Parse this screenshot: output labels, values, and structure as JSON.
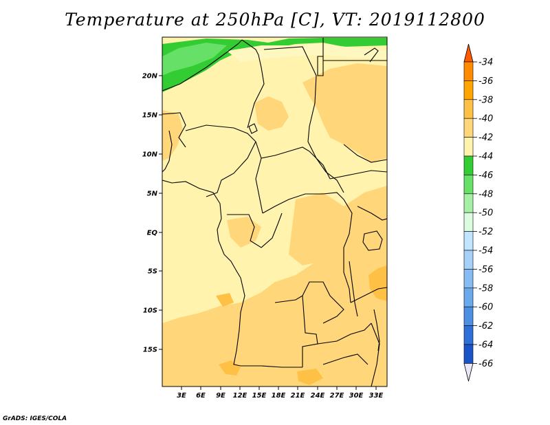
{
  "title": "Temperature at 250hPa [C], VT: 2019112800",
  "credit": "GrADS: IGES/COLA",
  "map": {
    "lat_labels": [
      "20N",
      "15N",
      "10N",
      "5N",
      "EQ",
      "5S",
      "10S",
      "15S"
    ],
    "lon_labels": [
      "3E",
      "6E",
      "9E",
      "12E",
      "15E",
      "18E",
      "21E",
      "24E",
      "27E",
      "30E",
      "33E"
    ]
  },
  "colorbar": {
    "labels": [
      "-34",
      "-36",
      "-38",
      "-40",
      "-42",
      "-44",
      "-46",
      "-48",
      "-50",
      "-52",
      "-54",
      "-56",
      "-58",
      "-60",
      "-62",
      "-64",
      "-66"
    ],
    "colors": [
      "#ff8c00",
      "#ffa500",
      "#ffc145",
      "#ffd77a",
      "#fff3ae",
      "#33cc33",
      "#66e066",
      "#a6f0a6",
      "#dcfce0",
      "#bfe5ff",
      "#a5d0f8",
      "#87bcf2",
      "#6aa9ec",
      "#4d8fe2",
      "#2e6fd8",
      "#1a55c8",
      "#0a1f78"
    ],
    "top_color": "#ff5a00",
    "bottom_color": "#e8e8f8"
  },
  "colors": {
    "base": "#fff3ae",
    "warm": "#ffd77a",
    "warmer": "#ffc145",
    "cold_green": "#33cc33",
    "green_light": "#66e066"
  }
}
